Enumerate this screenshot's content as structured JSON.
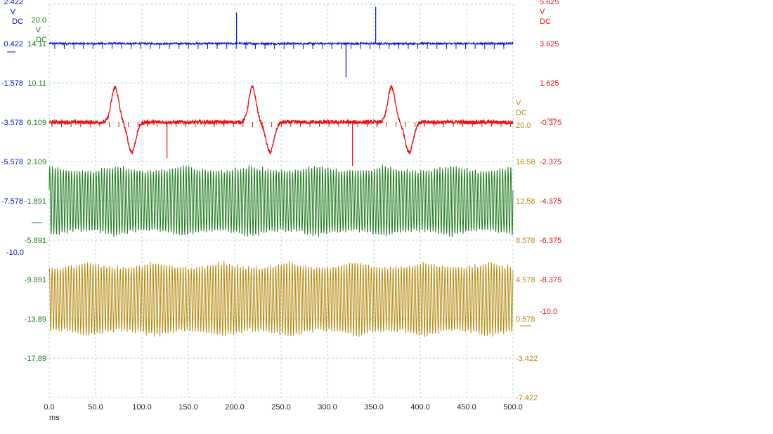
{
  "chart_data": {
    "type": "line",
    "title": "",
    "xlabel": "ms",
    "ylabel": "",
    "x_range": [
      0,
      500
    ],
    "x_ticks": [
      "0.0",
      "50.0",
      "100.0",
      "150.0",
      "200.0",
      "250.0",
      "300.0",
      "350.0",
      "400.0",
      "450.0",
      "500.0"
    ],
    "grid": true,
    "channels": [
      {
        "id": "blue",
        "color": "#0a10c8",
        "unit": "V",
        "coupling": "DC",
        "axis_side": "left-outer",
        "tick_labels": [
          "2.422",
          "0.422",
          "-1.578",
          "-3.578",
          "-5.578",
          "-7.578",
          "-10.0"
        ],
        "axis_range": [
          -17.578,
          2.422
        ],
        "baseline": 0.422,
        "noise": 0.05,
        "waveform": "flat baseline with short spikes every ~10 ms",
        "spikes": [
          {
            "x": 202.0,
            "value": 2.0
          },
          {
            "x": 320.0,
            "value": -1.3
          },
          {
            "x": 352.0,
            "value": 2.3
          }
        ]
      },
      {
        "id": "red",
        "color": "#e81010",
        "unit": "V",
        "coupling": "DC",
        "axis_side": "right-outer",
        "tick_labels": [
          "5.625",
          "3.625",
          "1.625",
          "-0.375",
          "-2.375",
          "-4.375",
          "-6.375",
          "-8.375",
          "-10.0"
        ],
        "axis_range": [
          -14.375,
          5.625
        ],
        "baseline": -0.375,
        "noise": 0.1,
        "waveform": "biphasic complexes (positive peak then negative trough)",
        "complexes": [
          {
            "peak_x": 71,
            "peak_value": 1.4,
            "trough_x": 89,
            "trough_value": -1.9
          },
          {
            "peak_x": 219,
            "peak_value": 1.4,
            "trough_x": 238,
            "trough_value": -1.9
          },
          {
            "peak_x": 369,
            "peak_value": 1.4,
            "trough_x": 388,
            "trough_value": -1.9
          }
        ],
        "spikes": [
          {
            "x": 127.0,
            "value": -2.2
          },
          {
            "x": 327.0,
            "value": -2.6
          }
        ]
      },
      {
        "id": "green",
        "color": "#1e7a1e",
        "unit": "V",
        "coupling": "DC",
        "range_label": "20.0",
        "axis_side": "left-inner",
        "tick_labels": [
          "20.0",
          "14.11",
          "10.11",
          "6.109",
          "2.109",
          "-1.891",
          "-5.891",
          "-9.891",
          "-13.89",
          "-17.89"
        ],
        "axis_range": [
          -17.891,
          22.109
        ],
        "baseline": 2.109,
        "amplitude": 3.6,
        "cycles_per_ms": 0.34,
        "waveform": "dense oscillation"
      },
      {
        "id": "gold",
        "color": "#b58a10",
        "unit": "V",
        "coupling": "DC",
        "range_label": "20.0",
        "axis_side": "right-inner",
        "tick_labels": [
          "20.0",
          "16.58",
          "12.58",
          "8.578",
          "4.578",
          "0.578",
          "-3.422",
          "-7.422"
        ],
        "axis_range": [
          -7.422,
          32.578
        ],
        "baseline": 2.578,
        "amplitude": 3.8,
        "cycles_per_ms": 0.34,
        "waveform": "dense oscillation"
      }
    ]
  }
}
